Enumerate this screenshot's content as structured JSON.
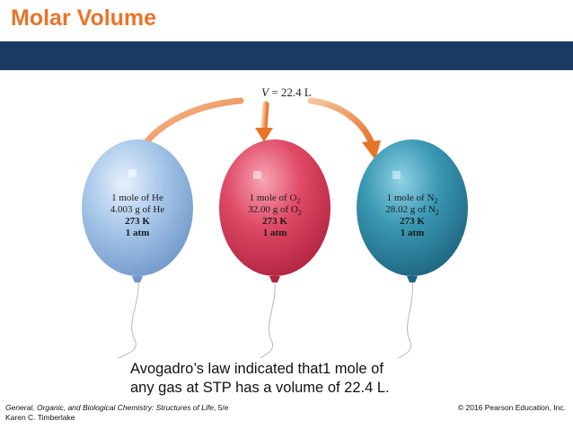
{
  "slide": {
    "title": "Molar Volume",
    "band_color": "#1b3a63",
    "title_color": "#e8742a"
  },
  "figure": {
    "volume_symbol": "V",
    "volume_value": " = 22.4 L",
    "balloons": [
      {
        "color": "#9cbfe3",
        "line1": "1 mole of He",
        "line2": "4.003 g of He",
        "temperature": "273 K",
        "pressure": "1 atm"
      },
      {
        "color": "#d9415c",
        "line1_prefix": "1 mole of O",
        "line1_sub": "2",
        "line2_prefix": "32.00 g of O",
        "line2_sub": "2",
        "temperature": "273 K",
        "pressure": "1 atm"
      },
      {
        "color": "#2f8fab",
        "line1_prefix": "1 mole of N",
        "line1_sub": "2",
        "line2_prefix": "28.02 g of N",
        "line2_sub": "2",
        "temperature": "273 K",
        "pressure": "1 atm"
      }
    ]
  },
  "caption": {
    "line1": "Avogadro’s law indicated that1 mole of",
    "line2": "any gas at STP has a volume of 22.4 L."
  },
  "footer": {
    "book_title": "General, Organic, and Biological Chemistry: Structures of Life",
    "edition": ", 5/e",
    "author": "Karen C. Timberlake",
    "copyright": "© 2016 Pearson Education, Inc."
  }
}
